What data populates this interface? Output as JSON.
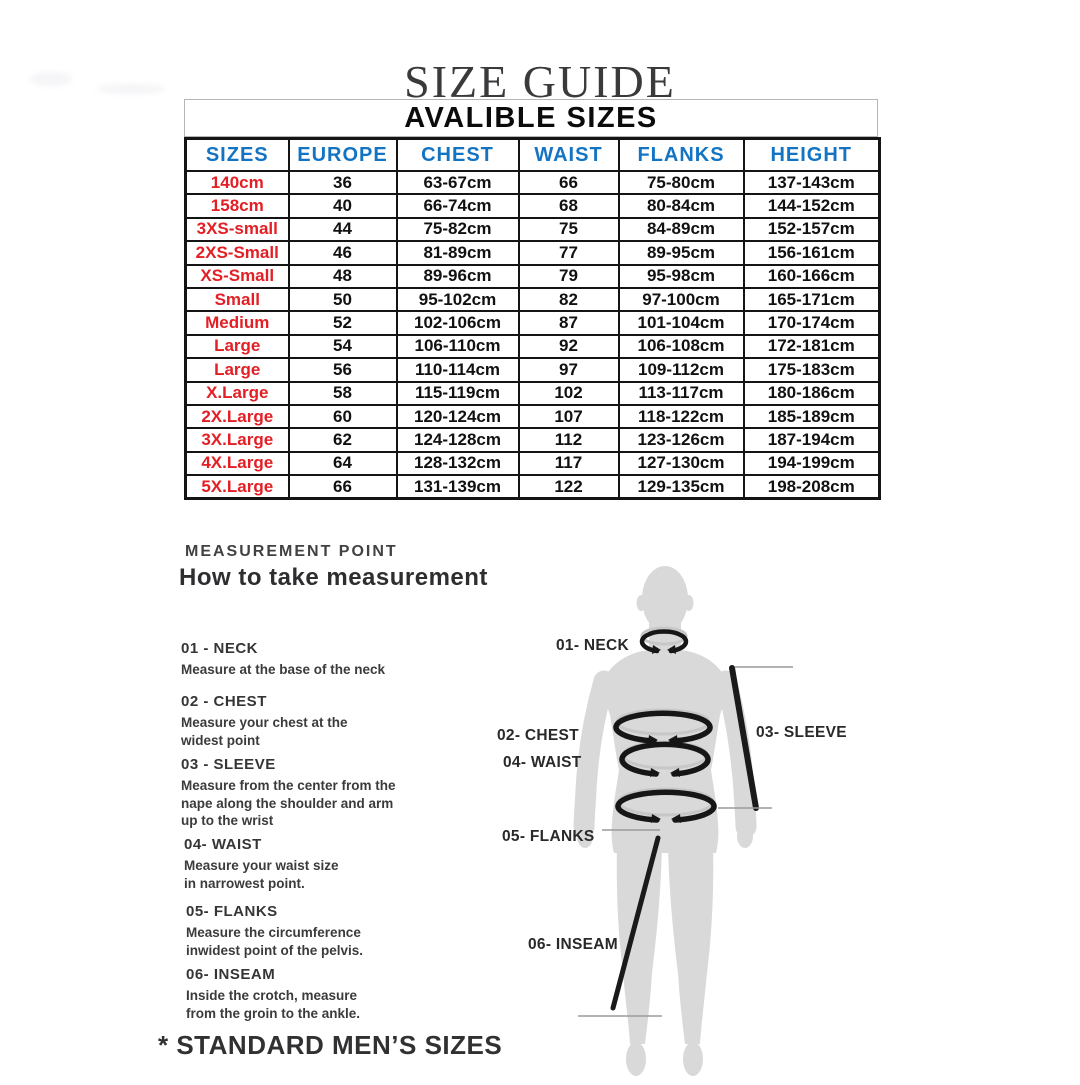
{
  "title": "SIZE GUIDE",
  "sizes_table": {
    "heading": "AVALIBLE SIZES",
    "columns": [
      "SIZES",
      "EUROPE",
      "CHEST",
      "WAIST",
      "FLANKS",
      "HEIGHT"
    ],
    "rows": [
      [
        "140cm",
        "36",
        "63-67cm",
        "66",
        "75-80cm",
        "137-143cm"
      ],
      [
        "158cm",
        "40",
        "66-74cm",
        "68",
        "80-84cm",
        "144-152cm"
      ],
      [
        "3XS-small",
        "44",
        "75-82cm",
        "75",
        "84-89cm",
        "152-157cm"
      ],
      [
        "2XS-Small",
        "46",
        "81-89cm",
        "77",
        "89-95cm",
        "156-161cm"
      ],
      [
        "XS-Small",
        "48",
        "89-96cm",
        "79",
        "95-98cm",
        "160-166cm"
      ],
      [
        "Small",
        "50",
        "95-102cm",
        "82",
        "97-100cm",
        "165-171cm"
      ],
      [
        "Medium",
        "52",
        "102-106cm",
        "87",
        "101-104cm",
        "170-174cm"
      ],
      [
        "Large",
        "54",
        "106-110cm",
        "92",
        "106-108cm",
        "172-181cm"
      ],
      [
        "Large",
        "56",
        "110-114cm",
        "97",
        "109-112cm",
        "175-183cm"
      ],
      [
        "X.Large",
        "58",
        "115-119cm",
        "102",
        "113-117cm",
        "180-186cm"
      ],
      [
        "2X.Large",
        "60",
        "120-124cm",
        "107",
        "118-122cm",
        "185-189cm"
      ],
      [
        "3X.Large",
        "62",
        "124-128cm",
        "112",
        "123-126cm",
        "187-194cm"
      ],
      [
        "4X.Large",
        "64",
        "128-132cm",
        "117",
        "127-130cm",
        "194-199cm"
      ],
      [
        "5X.Large",
        "66",
        "131-139cm",
        "122",
        "129-135cm",
        "198-208cm"
      ]
    ],
    "colors": {
      "header_text": "#1374c4",
      "size_text": "#e31e24",
      "body_text": "#111111"
    }
  },
  "measurement": {
    "kicker": "MEASUREMENT POINT",
    "heading": "How to take measurement",
    "items": [
      {
        "title": "01 - NECK",
        "desc": "Measure at the base of the neck"
      },
      {
        "title": "02 - CHEST",
        "desc": "Measure your chest at the\nwidest point"
      },
      {
        "title": "03 - SLEEVE",
        "desc": "Measure from the center from the\nnape along the shoulder and arm\nup to the wrist"
      },
      {
        "title": "04- WAIST",
        "desc": "Measure your waist size\nin narrowest point."
      },
      {
        "title": "05- FLANKS",
        "desc": "Measure the circumference\ninwidest point of the pelvis."
      },
      {
        "title": "06- INSEAM",
        "desc": "Inside the crotch, measure\nfrom the groin to the ankle."
      }
    ]
  },
  "figure": {
    "labels": {
      "neck": "01- NECK",
      "chest": "02- CHEST",
      "sleeve": "03- SLEEVE",
      "waist": "04- WAIST",
      "flanks": "05- FLANKS",
      "inseam": "06- INSEAM"
    }
  },
  "footnote": "* STANDARD MEN’S SIZES"
}
